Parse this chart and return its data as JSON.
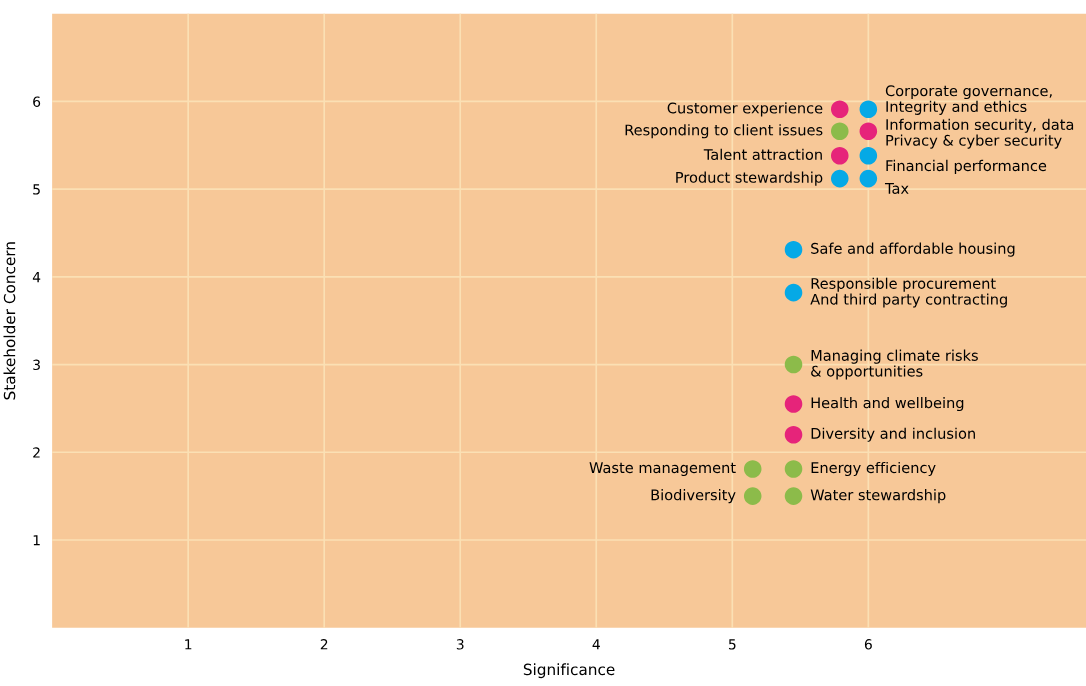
{
  "chart_data": {
    "type": "scatter",
    "xlabel": "Significance",
    "ylabel": "Stakeholder Concern",
    "xlim": [
      0,
      7.6
    ],
    "ylim": [
      0,
      7
    ],
    "xticks": [
      1,
      2,
      3,
      4,
      5,
      6
    ],
    "yticks": [
      1,
      2,
      3,
      4,
      5,
      6
    ],
    "grid": true,
    "marker": "circle",
    "series": [
      {
        "color": "#e6247a",
        "x": [
          5.79,
          6.0,
          5.79,
          5.45,
          5.45
        ],
        "values": [
          5.91,
          5.66,
          5.38,
          2.55,
          2.2
        ]
      },
      {
        "color": "#8cbb4a",
        "x": [
          5.79,
          5.45,
          5.15,
          5.45,
          5.15,
          5.45
        ],
        "values": [
          5.66,
          3.0,
          1.81,
          1.81,
          1.5,
          1.5
        ]
      },
      {
        "color": "#05a9e6",
        "x": [
          6.0,
          6.0,
          5.79,
          6.0,
          5.45,
          5.45
        ],
        "values": [
          5.91,
          5.38,
          5.12,
          5.12,
          4.31,
          3.82
        ]
      }
    ],
    "annotations": [
      {
        "text": "Customer experience",
        "x": 5.79,
        "y": 5.91
      },
      {
        "text": "Corporate governance,\nIntegrity and ethics",
        "x": 6.0,
        "y": 5.91
      },
      {
        "text": "Responding to client issues",
        "x": 5.79,
        "y": 5.66
      },
      {
        "text": "Information security, data\nPrivacy & cyber security",
        "x": 6.0,
        "y": 5.66
      },
      {
        "text": "Talent attraction",
        "x": 5.79,
        "y": 5.38
      },
      {
        "text": "Financial performance",
        "x": 6.0,
        "y": 5.38
      },
      {
        "text": "Product stewardship",
        "x": 5.79,
        "y": 5.12
      },
      {
        "text": "Tax",
        "x": 6.0,
        "y": 5.12
      },
      {
        "text": "Safe and affordable housing",
        "x": 5.45,
        "y": 4.31
      },
      {
        "text": "Responsible procurement\nAnd third party contracting",
        "x": 5.45,
        "y": 3.82
      },
      {
        "text": "Managing climate risks\n& opportunities",
        "x": 5.45,
        "y": 3.0
      },
      {
        "text": "Health and wellbeing",
        "x": 5.45,
        "y": 2.55
      },
      {
        "text": "Diversity and inclusion",
        "x": 5.45,
        "y": 2.2
      },
      {
        "text": "Waste management",
        "x": 5.15,
        "y": 1.81
      },
      {
        "text": "Energy efficiency",
        "x": 5.45,
        "y": 1.81
      },
      {
        "text": "Biodiversity",
        "x": 5.15,
        "y": 1.5
      },
      {
        "text": "Water stewardship",
        "x": 5.45,
        "y": 1.5
      }
    ]
  }
}
